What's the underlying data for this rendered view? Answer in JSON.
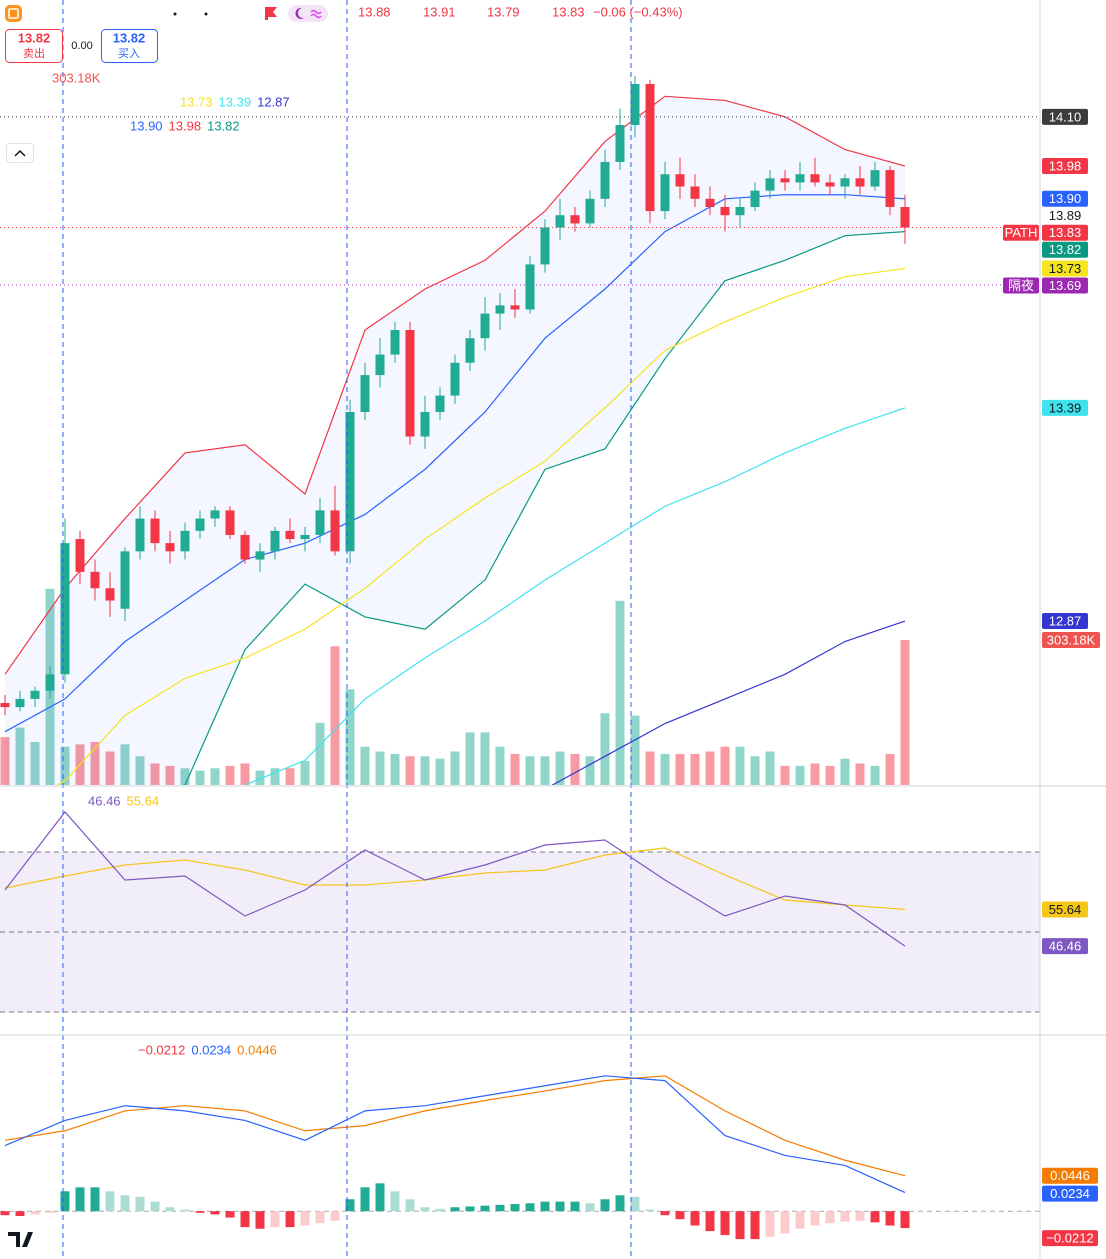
{
  "toolbar": {
    "bid": "13.82",
    "bid_label": "卖出",
    "spread": "0.00",
    "ask": "13.82",
    "ask_label": "买入",
    "open": "13.88",
    "high": "13.91",
    "low": "13.79",
    "close": "13.83",
    "change": "−0.06 (−0.43%)"
  },
  "chart_data": {
    "type": "candlestick",
    "ylim": [
      12.47,
      14.385
    ],
    "up_color": "#22ab94",
    "down_color": "#f23645",
    "candles": [
      [
        12.67,
        12.69,
        12.64,
        12.66
      ],
      [
        12.66,
        12.7,
        12.65,
        12.68
      ],
      [
        12.68,
        12.71,
        12.66,
        12.7
      ],
      [
        12.7,
        12.76,
        12.68,
        12.74
      ],
      [
        12.74,
        13.12,
        12.72,
        13.06
      ],
      [
        13.07,
        13.09,
        12.96,
        12.99
      ],
      [
        12.99,
        13.02,
        12.92,
        12.95
      ],
      [
        12.95,
        12.99,
        12.88,
        12.92
      ],
      [
        12.9,
        13.05,
        12.87,
        13.04
      ],
      [
        13.04,
        13.15,
        13.02,
        13.12
      ],
      [
        13.12,
        13.14,
        13.04,
        13.06
      ],
      [
        13.06,
        13.09,
        13.01,
        13.04
      ],
      [
        13.04,
        13.11,
        13.02,
        13.09
      ],
      [
        13.09,
        13.14,
        13.07,
        13.12
      ],
      [
        13.12,
        13.15,
        13.1,
        13.14
      ],
      [
        13.14,
        13.15,
        13.07,
        13.08
      ],
      [
        13.08,
        13.09,
        13.01,
        13.02
      ],
      [
        13.02,
        13.06,
        12.99,
        13.04
      ],
      [
        13.04,
        13.1,
        13.02,
        13.09
      ],
      [
        13.09,
        13.12,
        13.06,
        13.07
      ],
      [
        13.07,
        13.1,
        13.04,
        13.08
      ],
      [
        13.08,
        13.17,
        13.06,
        13.14
      ],
      [
        13.14,
        13.2,
        13.03,
        13.04
      ],
      [
        13.04,
        13.41,
        13.01,
        13.38
      ],
      [
        13.38,
        13.5,
        13.36,
        13.47
      ],
      [
        13.47,
        13.56,
        13.44,
        13.52
      ],
      [
        13.52,
        13.6,
        13.5,
        13.58
      ],
      [
        13.58,
        13.6,
        13.3,
        13.32
      ],
      [
        13.32,
        13.42,
        13.29,
        13.38
      ],
      [
        13.38,
        13.44,
        13.36,
        13.42
      ],
      [
        13.42,
        13.52,
        13.4,
        13.5
      ],
      [
        13.5,
        13.58,
        13.48,
        13.56
      ],
      [
        13.56,
        13.66,
        13.53,
        13.62
      ],
      [
        13.62,
        13.67,
        13.58,
        13.64
      ],
      [
        13.64,
        13.68,
        13.61,
        13.63
      ],
      [
        13.63,
        13.76,
        13.62,
        13.74
      ],
      [
        13.74,
        13.85,
        13.72,
        13.83
      ],
      [
        13.83,
        13.9,
        13.8,
        13.86
      ],
      [
        13.86,
        13.88,
        13.82,
        13.84
      ],
      [
        13.84,
        13.92,
        13.83,
        13.9
      ],
      [
        13.9,
        14.02,
        13.88,
        13.99
      ],
      [
        13.99,
        14.12,
        13.97,
        14.08
      ],
      [
        14.08,
        14.2,
        14.05,
        14.18
      ],
      [
        14.18,
        14.19,
        13.84,
        13.87
      ],
      [
        13.87,
        13.99,
        13.85,
        13.96
      ],
      [
        13.96,
        14.0,
        13.9,
        13.93
      ],
      [
        13.93,
        13.96,
        13.88,
        13.9
      ],
      [
        13.9,
        13.93,
        13.86,
        13.88
      ],
      [
        13.88,
        13.91,
        13.82,
        13.86
      ],
      [
        13.86,
        13.9,
        13.83,
        13.88
      ],
      [
        13.88,
        13.94,
        13.87,
        13.92
      ],
      [
        13.92,
        13.97,
        13.9,
        13.95
      ],
      [
        13.95,
        13.97,
        13.92,
        13.94
      ],
      [
        13.94,
        13.99,
        13.92,
        13.96
      ],
      [
        13.96,
        14.0,
        13.93,
        13.94
      ],
      [
        13.94,
        13.96,
        13.91,
        13.93
      ],
      [
        13.93,
        13.96,
        13.9,
        13.95
      ],
      [
        13.95,
        13.98,
        13.91,
        13.93
      ],
      [
        13.93,
        13.99,
        13.92,
        13.97
      ],
      [
        13.97,
        13.98,
        13.86,
        13.88
      ],
      [
        13.88,
        13.91,
        13.79,
        13.83
      ]
    ],
    "volume_ylim": [
      0,
      1641
    ],
    "volumes": [
      100,
      120,
      90,
      410,
      80,
      85,
      90,
      70,
      85,
      60,
      45,
      40,
      35,
      30,
      35,
      40,
      45,
      30,
      35,
      35,
      50,
      130,
      290,
      200,
      80,
      70,
      65,
      60,
      60,
      55,
      70,
      110,
      110,
      80,
      65,
      60,
      60,
      70,
      65,
      60,
      150,
      385,
      145,
      70,
      65,
      65,
      65,
      70,
      80,
      80,
      60,
      70,
      40,
      40,
      45,
      40,
      55,
      45,
      40,
      65,
      303.18
    ],
    "volume_label": "303.18K",
    "volume_label_color": "#ef5350",
    "close_tag": "PATH",
    "close_color": "#f23645",
    "line_x": [
      0,
      4,
      8,
      12,
      16,
      20,
      24,
      28,
      32,
      36,
      40,
      44,
      48,
      52,
      56,
      60
    ],
    "overlays": [
      {
        "color": "#2962ff",
        "text_color": "#ffffff",
        "label": "13.90",
        "values": [
          12.6,
          12.68,
          12.82,
          12.92,
          13.02,
          13.06,
          13.13,
          13.24,
          13.38,
          13.56,
          13.68,
          13.82,
          13.9,
          13.91,
          13.91,
          13.9
        ]
      },
      {
        "color": "#f23645",
        "text_color": "#ffffff",
        "label": "13.98",
        "values": [
          12.74,
          12.95,
          13.12,
          13.28,
          13.3,
          13.18,
          13.58,
          13.68,
          13.75,
          13.87,
          14.04,
          14.15,
          14.14,
          14.1,
          14.02,
          13.98
        ]
      },
      {
        "color": "#089981",
        "text_color": "#ffffff",
        "label": "13.82",
        "values": [
          12.45,
          12.4,
          12.42,
          12.47,
          12.8,
          12.96,
          12.88,
          12.85,
          12.97,
          13.24,
          13.29,
          13.51,
          13.7,
          13.75,
          13.81,
          13.82
        ]
      },
      {
        "color": "#f5e41e",
        "text_color": "#131722",
        "label": "13.73",
        "values": [
          12.4,
          12.48,
          12.64,
          12.73,
          12.78,
          12.85,
          12.95,
          13.07,
          13.17,
          13.26,
          13.39,
          13.53,
          13.6,
          13.66,
          13.71,
          13.73
        ]
      },
      {
        "color": "#3fe3ee",
        "text_color": "#131722",
        "label": "13.39",
        "values": [
          null,
          null,
          null,
          null,
          12.47,
          12.53,
          12.68,
          12.78,
          12.87,
          12.97,
          13.06,
          13.15,
          13.21,
          13.28,
          13.34,
          13.39
        ]
      },
      {
        "color": "#3535d2",
        "text_color": "#ffffff",
        "label": "12.87",
        "values": [
          null,
          null,
          null,
          null,
          null,
          null,
          null,
          null,
          null,
          12.46,
          12.54,
          12.62,
          12.68,
          12.74,
          12.82,
          12.87
        ]
      }
    ],
    "price_marks": [
      {
        "value": 14.1,
        "label": "14.10",
        "color": "#3c3c3c",
        "text_color": "#ffffff",
        "line": true
      },
      {
        "value": 13.89,
        "label": "13.89",
        "text_color": "#131722"
      },
      {
        "value": 13.69,
        "label": "13.69",
        "tag": "隔夜",
        "color": "#9c27b0",
        "text_color": "#ffffff",
        "line": true
      }
    ],
    "rsi": {
      "ylim": [
        24.25,
        86.25
      ],
      "levels": [
        70,
        50,
        30
      ],
      "color": "#7e57c2",
      "signal_color": "#f5c518",
      "values": [
        60.5,
        80,
        63,
        64,
        54,
        60.5,
        70.5,
        63,
        66.75,
        71.75,
        73,
        63,
        54,
        59,
        56.75,
        46.46
      ],
      "signal": [
        61,
        64,
        66.75,
        68,
        65.5,
        61.75,
        61.75,
        63,
        64.75,
        65.5,
        69.25,
        71,
        64.25,
        58,
        56.75,
        55.64
      ]
    },
    "macd": {
      "ylim": [
        -0.06,
        0.22
      ],
      "color": "#2962ff",
      "signal_color": "#f57c00",
      "hist_color": "#f23645",
      "hist_label": "−0.0212",
      "values": [
        0.0825,
        0.114,
        0.1325,
        0.126,
        0.114,
        0.089,
        0.126,
        0.1325,
        0.145,
        0.1575,
        0.17,
        0.164,
        0.095,
        0.07,
        0.0575,
        0.0234
      ],
      "signal": [
        0.089,
        0.101,
        0.126,
        0.1325,
        0.126,
        0.101,
        0.1075,
        0.126,
        0.139,
        0.151,
        0.164,
        0.17,
        0.126,
        0.089,
        0.064,
        0.0446
      ],
      "hist": [
        -0.005,
        -0.006,
        -0.004,
        -0.002,
        0.025,
        0.03,
        0.03,
        0.025,
        0.02,
        0.018,
        0.012,
        0.005,
        0.002,
        -0.002,
        -0.004,
        -0.008,
        -0.02,
        -0.022,
        -0.02,
        -0.02,
        -0.018,
        -0.015,
        -0.012,
        0.015,
        0.03,
        0.035,
        0.025,
        0.015,
        0.005,
        0.003,
        0.005,
        0.006,
        0.007,
        0.008,
        0.009,
        0.01,
        0.012,
        0.012,
        0.012,
        0.01,
        0.015,
        0.02,
        0.018,
        0.002,
        -0.005,
        -0.01,
        -0.018,
        -0.025,
        -0.03,
        -0.035,
        -0.035,
        -0.032,
        -0.028,
        -0.022,
        -0.018,
        -0.015,
        -0.013,
        -0.012,
        -0.014,
        -0.018,
        -0.0212
      ]
    }
  }
}
